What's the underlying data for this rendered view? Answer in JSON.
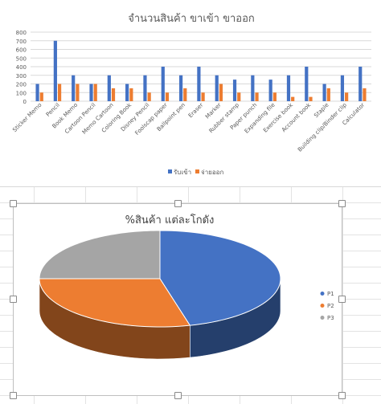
{
  "chart_data": [
    {
      "type": "bar",
      "title": "จำนวนสินค้า ขาเข้า ขาออก",
      "categories": [
        "Sticker Memo",
        "Pencil",
        "Book Memo",
        "Cartoon Pencil",
        "Memo Cartoon",
        "Coloring Book",
        "Disney Pencil",
        "Foolscap paper",
        "Ballpoint pen",
        "Eraser",
        "Marker",
        "Rubber stamp",
        "Paper punch",
        "Expanding file",
        "Exercise book",
        "Account book",
        "Staple",
        "Building clip/Binder clip",
        "Calculator"
      ],
      "series": [
        {
          "name": "รับเข้า",
          "color": "#4472c4",
          "values": [
            200,
            700,
            300,
            200,
            300,
            200,
            300,
            400,
            300,
            400,
            300,
            250,
            300,
            250,
            300,
            400,
            200,
            300,
            400
          ]
        },
        {
          "name": "จ่ายออก",
          "color": "#ed7d31",
          "values": [
            100,
            200,
            200,
            200,
            150,
            150,
            100,
            100,
            150,
            100,
            200,
            100,
            100,
            100,
            50,
            50,
            150,
            100,
            150
          ]
        }
      ],
      "ylim": [
        0,
        800
      ],
      "yticks": [
        0,
        100,
        200,
        300,
        400,
        500,
        600,
        700,
        800
      ],
      "grid": true,
      "legend": "bottom"
    },
    {
      "type": "pie",
      "title": "%สินค้า แต่ละโกดัง",
      "labels": [
        "P1",
        "P2",
        "P3"
      ],
      "values": [
        46,
        29,
        25
      ],
      "colors": [
        "#4472c4",
        "#ed7d31",
        "#a5a5a5"
      ],
      "legend": "right",
      "style": "3d"
    }
  ]
}
